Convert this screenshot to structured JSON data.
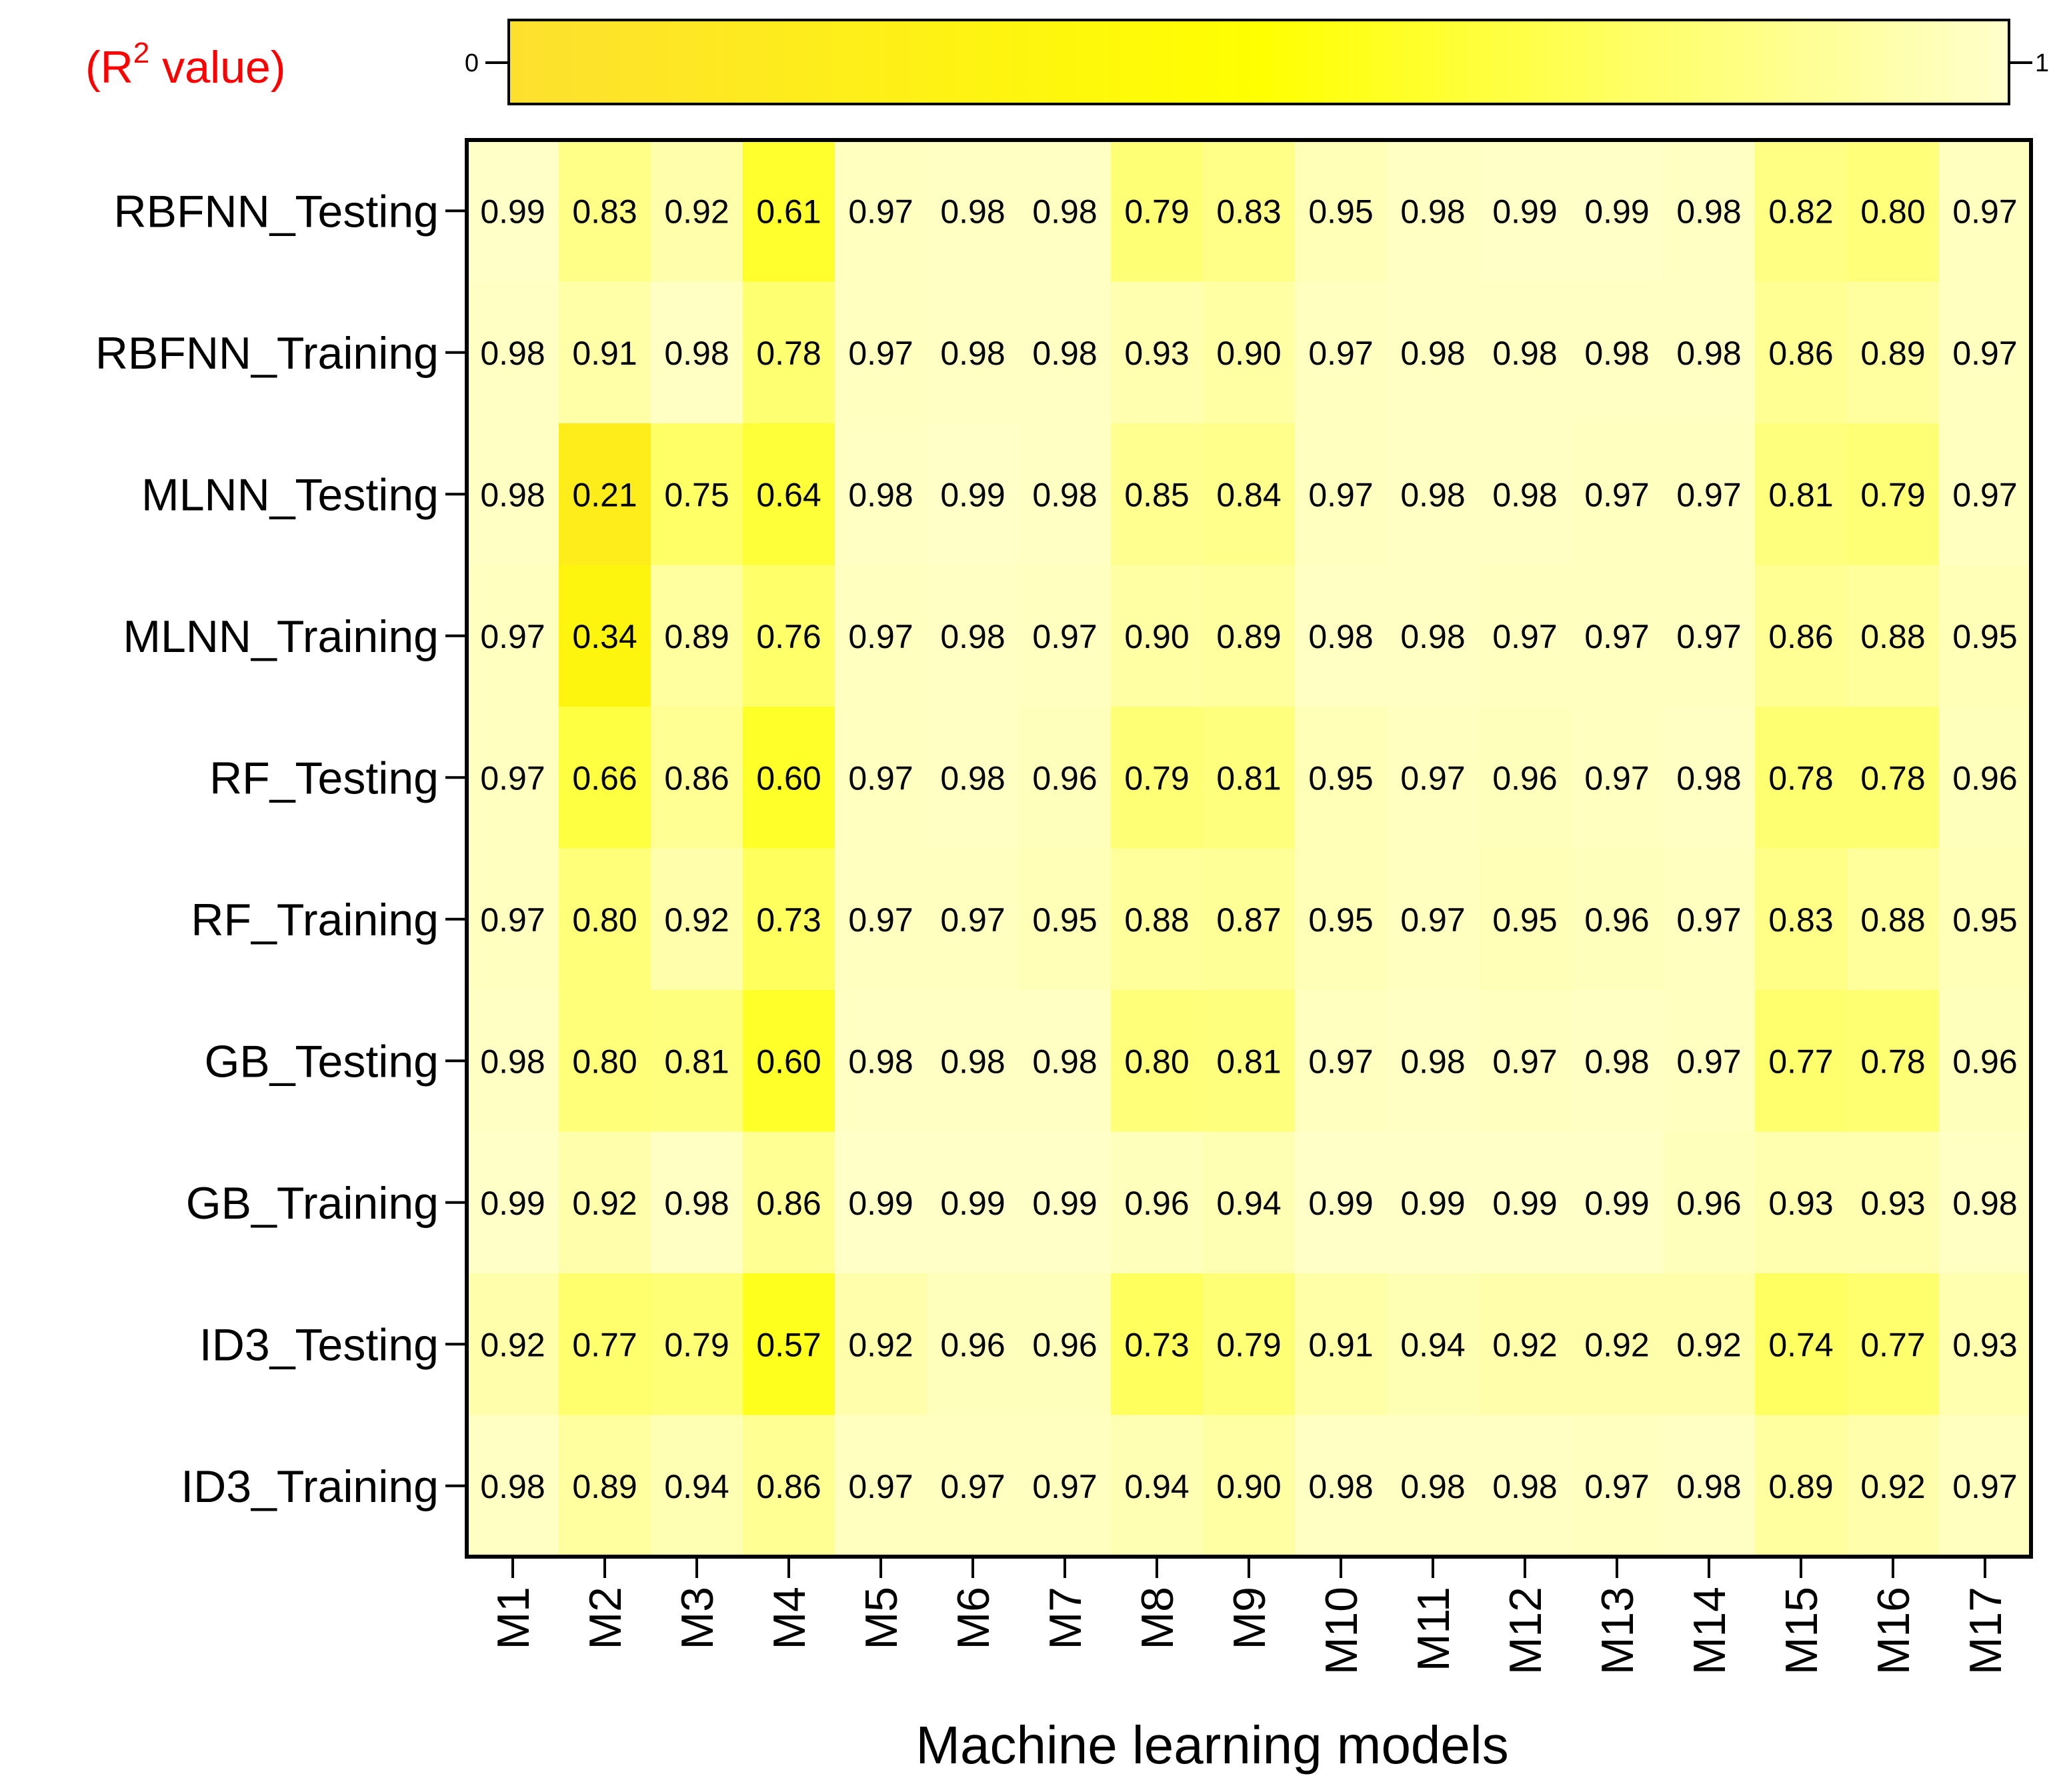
{
  "chart_data": {
    "type": "heatmap",
    "legend_title": "(R",
    "legend_title_sup": "2",
    "legend_title_suffix": " value)",
    "xlabel": "Machine learning models",
    "ylabel": "",
    "colorbar": {
      "min": 0,
      "max": 1,
      "min_label": "0",
      "max_label": "1",
      "colors": [
        "#fde02f",
        "#ffff00",
        "#ffffcc"
      ]
    },
    "rows": [
      "RBFNN_Testing",
      "RBFNN_Training",
      "MLNN_Testing",
      "MLNN_Training",
      "RF_Testing",
      "RF_Training",
      "GB_Testing",
      "GB_Training",
      "ID3_Testing",
      "ID3_Training"
    ],
    "columns": [
      "M1",
      "M2",
      "M3",
      "M4",
      "M5",
      "M6",
      "M7",
      "M8",
      "M9",
      "M10",
      "M11",
      "M12",
      "M13",
      "M14",
      "M15",
      "M16",
      "M17"
    ],
    "values": [
      [
        "0.99",
        "0.83",
        "0.92",
        "0.61",
        "0.97",
        "0.98",
        "0.98",
        "0.79",
        "0.83",
        "0.95",
        "0.98",
        "0.99",
        "0.99",
        "0.98",
        "0.82",
        "0.80",
        "0.97"
      ],
      [
        "0.98",
        "0.91",
        "0.98",
        "0.78",
        "0.97",
        "0.98",
        "0.98",
        "0.93",
        "0.90",
        "0.97",
        "0.98",
        "0.98",
        "0.98",
        "0.98",
        "0.86",
        "0.89",
        "0.97"
      ],
      [
        "0.98",
        "0.21",
        "0.75",
        "0.64",
        "0.98",
        "0.99",
        "0.98",
        "0.85",
        "0.84",
        "0.97",
        "0.98",
        "0.98",
        "0.97",
        "0.97",
        "0.81",
        "0.79",
        "0.97"
      ],
      [
        "0.97",
        "0.34",
        "0.89",
        "0.76",
        "0.97",
        "0.98",
        "0.97",
        "0.90",
        "0.89",
        "0.98",
        "0.98",
        "0.97",
        "0.97",
        "0.97",
        "0.86",
        "0.88",
        "0.95"
      ],
      [
        "0.97",
        "0.66",
        "0.86",
        "0.60",
        "0.97",
        "0.98",
        "0.96",
        "0.79",
        "0.81",
        "0.95",
        "0.97",
        "0.96",
        "0.97",
        "0.98",
        "0.78",
        "0.78",
        "0.96"
      ],
      [
        "0.97",
        "0.80",
        "0.92",
        "0.73",
        "0.97",
        "0.97",
        "0.95",
        "0.88",
        "0.87",
        "0.95",
        "0.97",
        "0.95",
        "0.96",
        "0.97",
        "0.83",
        "0.88",
        "0.95"
      ],
      [
        "0.98",
        "0.80",
        "0.81",
        "0.60",
        "0.98",
        "0.98",
        "0.98",
        "0.80",
        "0.81",
        "0.97",
        "0.98",
        "0.97",
        "0.98",
        "0.97",
        "0.77",
        "0.78",
        "0.96"
      ],
      [
        "0.99",
        "0.92",
        "0.98",
        "0.86",
        "0.99",
        "0.99",
        "0.99",
        "0.96",
        "0.94",
        "0.99",
        "0.99",
        "0.99",
        "0.99",
        "0.96",
        "0.93",
        "0.93",
        "0.98"
      ],
      [
        "0.92",
        "0.77",
        "0.79",
        "0.57",
        "0.92",
        "0.96",
        "0.96",
        "0.73",
        "0.79",
        "0.91",
        "0.94",
        "0.92",
        "0.92",
        "0.92",
        "0.74",
        "0.77",
        "0.93"
      ],
      [
        "0.98",
        "0.89",
        "0.94",
        "0.86",
        "0.97",
        "0.97",
        "0.97",
        "0.94",
        "0.90",
        "0.98",
        "0.98",
        "0.98",
        "0.97",
        "0.98",
        "0.89",
        "0.92",
        "0.97"
      ]
    ]
  }
}
